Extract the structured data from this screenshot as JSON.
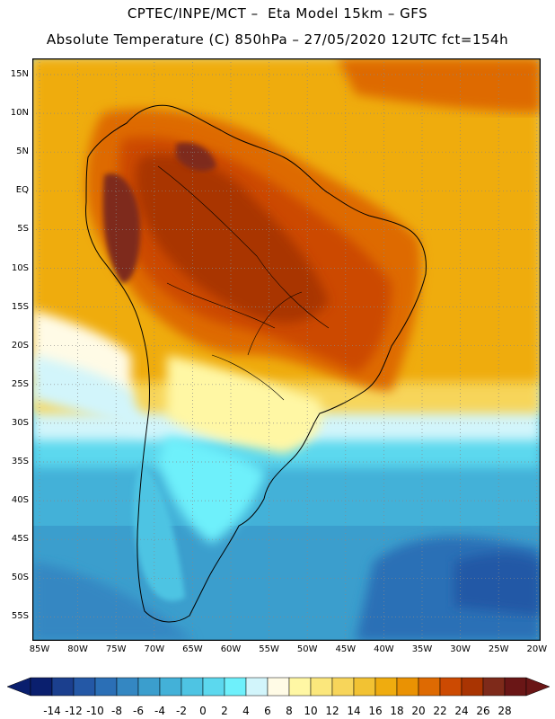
{
  "header": {
    "title_line1": "CPTEC/INPE/MCT –  Eta Model 15km – GFS",
    "title_line2": "Absolute Temperature (C) 850hPa – 27/05/2020 12UTC fct=154h"
  },
  "map": {
    "lat_labels": [
      "15N",
      "10N",
      "5N",
      "EQ",
      "5S",
      "10S",
      "15S",
      "20S",
      "25S",
      "30S",
      "35S",
      "40S",
      "45S",
      "50S",
      "55S"
    ],
    "lon_labels": [
      "85W",
      "80W",
      "75W",
      "70W",
      "65W",
      "60W",
      "55W",
      "50W",
      "45W",
      "40W",
      "35W",
      "30W",
      "25W",
      "20W"
    ]
  },
  "legend": {
    "labels": [
      "-14",
      "-12",
      "-10",
      "-8",
      "-6",
      "-4",
      "-2",
      "0",
      "2",
      "4",
      "6",
      "8",
      "10",
      "12",
      "14",
      "16",
      "18",
      "20",
      "22",
      "24",
      "26",
      "28"
    ],
    "colors": [
      "#0a1f6e",
      "#1b3f8e",
      "#2458a6",
      "#2b6fb6",
      "#3487c2",
      "#3b9ecd",
      "#43b1d8",
      "#4ec4e3",
      "#5cd8ee",
      "#6ef0fb",
      "#d2f5fb",
      "#fffbe6",
      "#fff7a4",
      "#fbe77c",
      "#f7d55a",
      "#f2c233",
      "#efac0f",
      "#ea9203",
      "#de6a02",
      "#cc4a02",
      "#a93402",
      "#7e2a1a",
      "#6a1616"
    ]
  }
}
